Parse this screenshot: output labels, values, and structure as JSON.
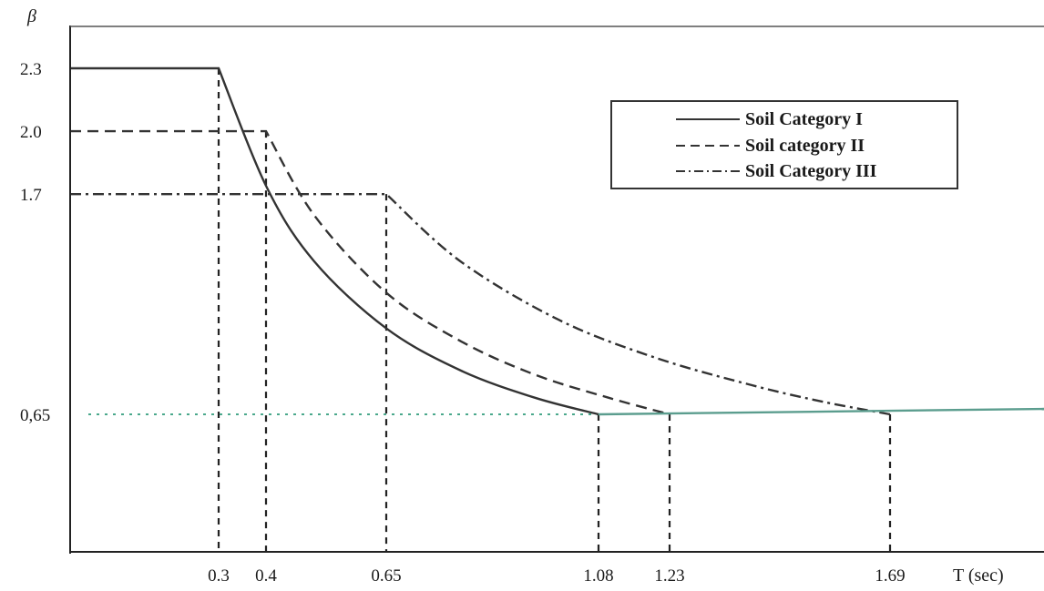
{
  "chart_data": {
    "type": "line",
    "title": "",
    "xlabel": "T (sec)",
    "ylabel": "β",
    "xlim": [
      0,
      2.2
    ],
    "ylim": [
      0,
      2.5
    ],
    "grid": false,
    "legend_position": "top-right",
    "y_ticks": [
      {
        "value": 2.3,
        "label": "2.3"
      },
      {
        "value": 2.0,
        "label": "2.0"
      },
      {
        "value": 1.7,
        "label": "1.7"
      },
      {
        "value": 0.65,
        "label": "0,65"
      }
    ],
    "x_ticks": [
      {
        "value": 0.3,
        "label": "0.3"
      },
      {
        "value": 0.4,
        "label": "0.4"
      },
      {
        "value": 0.65,
        "label": "0.65"
      },
      {
        "value": 1.08,
        "label": "1.08"
      },
      {
        "value": 1.23,
        "label": "1.23"
      },
      {
        "value": 1.69,
        "label": "1.69"
      }
    ],
    "series": [
      {
        "name": "Soil Category I",
        "style": "solid",
        "color": "#333333",
        "points": [
          [
            0,
            2.3
          ],
          [
            0.3,
            2.3
          ],
          [
            0.4,
            1.74
          ],
          [
            0.5,
            1.38
          ],
          [
            0.65,
            1.06
          ],
          [
            0.8,
            0.86
          ],
          [
            0.95,
            0.73
          ],
          [
            1.08,
            0.65
          ],
          [
            2.2,
            0.65
          ]
        ]
      },
      {
        "name": "Soil category II",
        "style": "dashed",
        "color": "#333333",
        "points": [
          [
            0,
            2.0
          ],
          [
            0.4,
            2.0
          ],
          [
            0.5,
            1.6
          ],
          [
            0.65,
            1.23
          ],
          [
            0.8,
            1.0
          ],
          [
            0.95,
            0.84
          ],
          [
            1.1,
            0.73
          ],
          [
            1.23,
            0.65
          ],
          [
            2.2,
            0.65
          ]
        ]
      },
      {
        "name": "Soil Category III",
        "style": "dashdot",
        "color": "#333333",
        "points": [
          [
            0,
            1.7
          ],
          [
            0.65,
            1.7
          ],
          [
            0.8,
            1.38
          ],
          [
            1.0,
            1.1
          ],
          [
            1.2,
            0.92
          ],
          [
            1.4,
            0.79
          ],
          [
            1.55,
            0.71
          ],
          [
            1.69,
            0.65
          ],
          [
            2.2,
            0.65
          ]
        ]
      }
    ],
    "reference_lines": {
      "vertical": [
        0.3,
        0.4,
        0.65,
        1.08,
        1.23,
        1.69
      ],
      "horizontal_dotted": 0.65,
      "horizontal_color": "#4aa88c"
    }
  }
}
